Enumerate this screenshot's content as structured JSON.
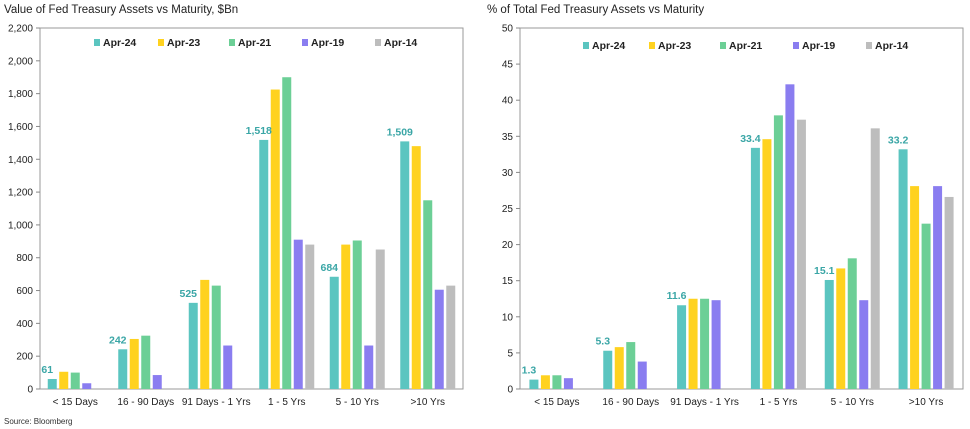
{
  "source": "Source: Bloomberg",
  "colors": {
    "Apr-24": "#5bc5c0",
    "Apr-23": "#ffd21f",
    "Apr-21": "#6ccf96",
    "Apr-19": "#8a7df0",
    "Apr-14": "#bdbdbd",
    "label": "#3aa6a6",
    "plot_border": "#9a9a9a"
  },
  "chart_data": [
    {
      "type": "bar",
      "title": "Value of Fed Treasury Assets vs Maturity, $Bn",
      "categories": [
        "< 15 Days",
        "16 - 90 Days",
        "91 Days - 1 Yrs",
        "1 - 5 Yrs",
        "5 - 10 Yrs",
        ">10 Yrs"
      ],
      "series": [
        {
          "name": "Apr-24",
          "values": [
            61,
            242,
            525,
            1518,
            684,
            1509
          ]
        },
        {
          "name": "Apr-23",
          "values": [
            105,
            305,
            665,
            1825,
            880,
            1480
          ]
        },
        {
          "name": "Apr-21",
          "values": [
            100,
            325,
            630,
            1900,
            905,
            1150
          ]
        },
        {
          "name": "Apr-19",
          "values": [
            35,
            85,
            265,
            910,
            265,
            605
          ]
        },
        {
          "name": "Apr-14",
          "values": [
            0,
            0,
            0,
            880,
            850,
            630
          ]
        }
      ],
      "data_labels": {
        "series": "Apr-24",
        "text": [
          "61",
          "242",
          "525",
          "1,518",
          "684",
          "1,509"
        ]
      },
      "ylim": [
        0,
        2200
      ],
      "yticks": [
        "0",
        "200",
        "400",
        "600",
        "800",
        "1,000",
        "1,200",
        "1,400",
        "1,600",
        "1,800",
        "2,000",
        "2,200"
      ],
      "grid": false,
      "legend": "top"
    },
    {
      "type": "bar",
      "title": "% of Total Fed Treasury Assets vs Maturity",
      "categories": [
        "< 15 Days",
        "16 - 90 Days",
        "91 Days - 1 Yrs",
        "1 - 5 Yrs",
        "5 - 10 Yrs",
        ">10 Yrs"
      ],
      "series": [
        {
          "name": "Apr-24",
          "values": [
            1.3,
            5.3,
            11.6,
            33.4,
            15.1,
            33.2
          ]
        },
        {
          "name": "Apr-23",
          "values": [
            1.9,
            5.8,
            12.5,
            34.6,
            16.7,
            28.1
          ]
        },
        {
          "name": "Apr-21",
          "values": [
            1.9,
            6.5,
            12.5,
            37.9,
            18.1,
            22.9
          ]
        },
        {
          "name": "Apr-19",
          "values": [
            1.5,
            3.8,
            12.3,
            42.2,
            12.3,
            28.1
          ]
        },
        {
          "name": "Apr-14",
          "values": [
            0,
            0,
            0,
            37.3,
            36.1,
            26.6
          ]
        }
      ],
      "data_labels": {
        "series": "Apr-24",
        "text": [
          "1.3",
          "5.3",
          "11.6",
          "33.4",
          "15.1",
          "33.2"
        ]
      },
      "ylim": [
        0,
        50
      ],
      "yticks": [
        "0",
        "5",
        "10",
        "15",
        "20",
        "25",
        "30",
        "35",
        "40",
        "45",
        "50"
      ],
      "grid": false,
      "legend": "top"
    }
  ]
}
